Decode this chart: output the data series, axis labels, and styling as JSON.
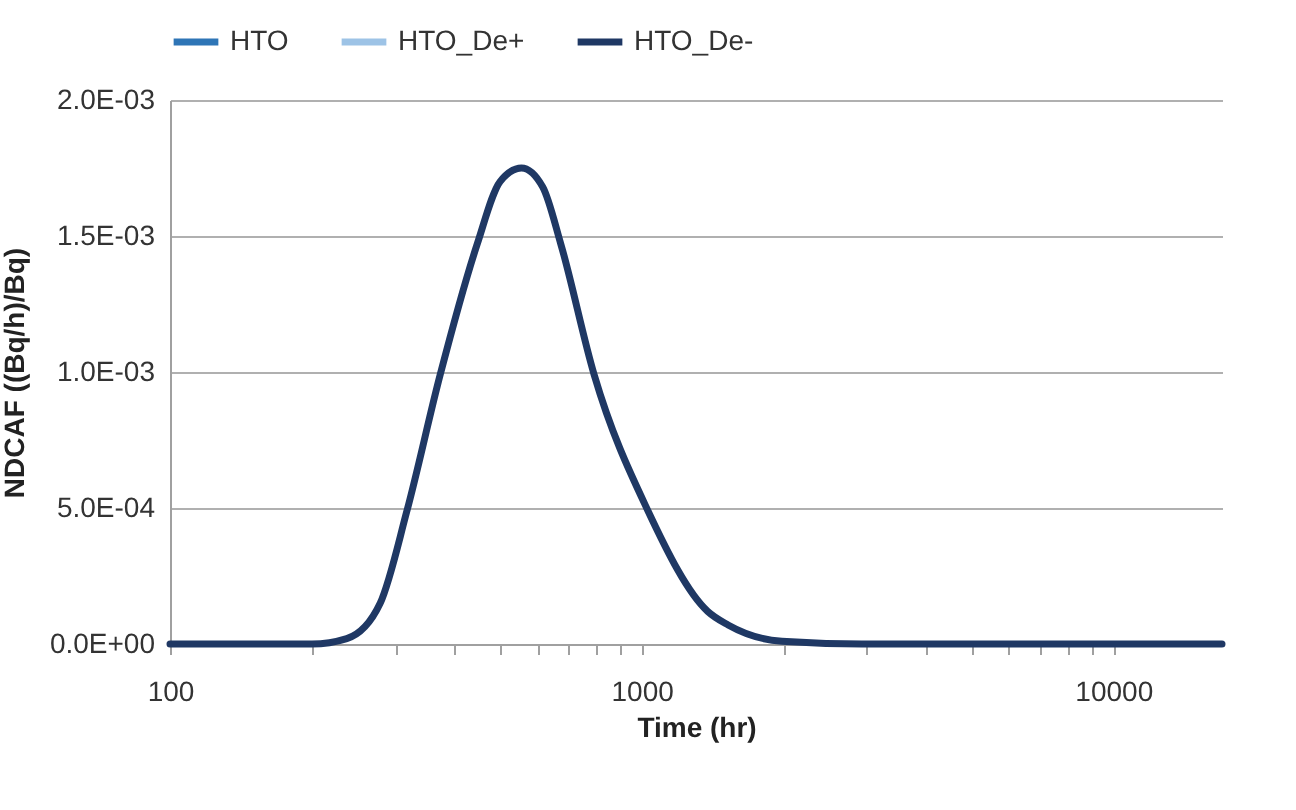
{
  "chart_data": {
    "type": "line",
    "xlabel": "Time (hr)",
    "ylabel": "NDCAF ((Bq/h)/Bq)",
    "x": [
      100,
      150,
      200,
      237,
      279,
      318,
      374,
      448,
      501,
      556,
      617,
      674,
      793,
      1031,
      1380,
      1525,
      1983,
      2930,
      5000,
      10000,
      17000
    ],
    "series": [
      {
        "name": "HTO",
        "color": "#2e75b6",
        "values": [
          null,
          null,
          null,
          null,
          null,
          null,
          null,
          null,
          null,
          null,
          null,
          null,
          null,
          null,
          null,
          null,
          null,
          null,
          null,
          null,
          null
        ]
      },
      {
        "name": "HTO_De+",
        "color": "#9dc3e6",
        "values": [
          null,
          null,
          null,
          null,
          null,
          null,
          null,
          null,
          null,
          null,
          null,
          null,
          null,
          null,
          null,
          null,
          null,
          null,
          null,
          null,
          null
        ]
      },
      {
        "name": "HTO_De-",
        "color": "#1f3864",
        "values": [
          0,
          0,
          0,
          2e-05,
          0.00015,
          0.00049,
          0.00099,
          0.00147,
          0.0017,
          0.00175,
          0.00168,
          0.00147,
          0.00099,
          0.00049,
          0.00012,
          7e-05,
          1e-05,
          0,
          0,
          0,
          0
        ]
      }
    ],
    "log": "x",
    "xlim": [
      100,
      17000
    ],
    "xticks": [
      100,
      {
        "value": 200,
        "label": null
      },
      {
        "value": 300,
        "label": null
      },
      {
        "value": 400,
        "label": null
      },
      {
        "value": 500,
        "label": null
      },
      {
        "value": 600,
        "label": null
      },
      {
        "value": 700,
        "label": null
      },
      {
        "value": 800,
        "label": null
      },
      {
        "value": 900,
        "label": null
      },
      1000,
      {
        "value": 2000,
        "label": null
      },
      {
        "value": 3000,
        "label": null
      },
      {
        "value": 4000,
        "label": null
      },
      {
        "value": 5000,
        "label": null
      },
      {
        "value": 6000,
        "label": null
      },
      {
        "value": 7000,
        "label": null
      },
      {
        "value": 8000,
        "label": null
      },
      {
        "value": 9000,
        "label": null
      },
      10000
    ],
    "ylim": [
      0,
      0.002
    ],
    "yticks": [
      {
        "value": 0,
        "label": "0.0E+00"
      },
      {
        "value": 0.0005,
        "label": "5.0E-04"
      },
      {
        "value": 0.001,
        "label": "1.0E-03"
      },
      {
        "value": 0.0015,
        "label": "1.5E-03"
      },
      {
        "value": 0.002,
        "label": "2.0E-03"
      }
    ],
    "grid": "y",
    "legend": "top",
    "marker": "none",
    "line_style": "solid"
  }
}
